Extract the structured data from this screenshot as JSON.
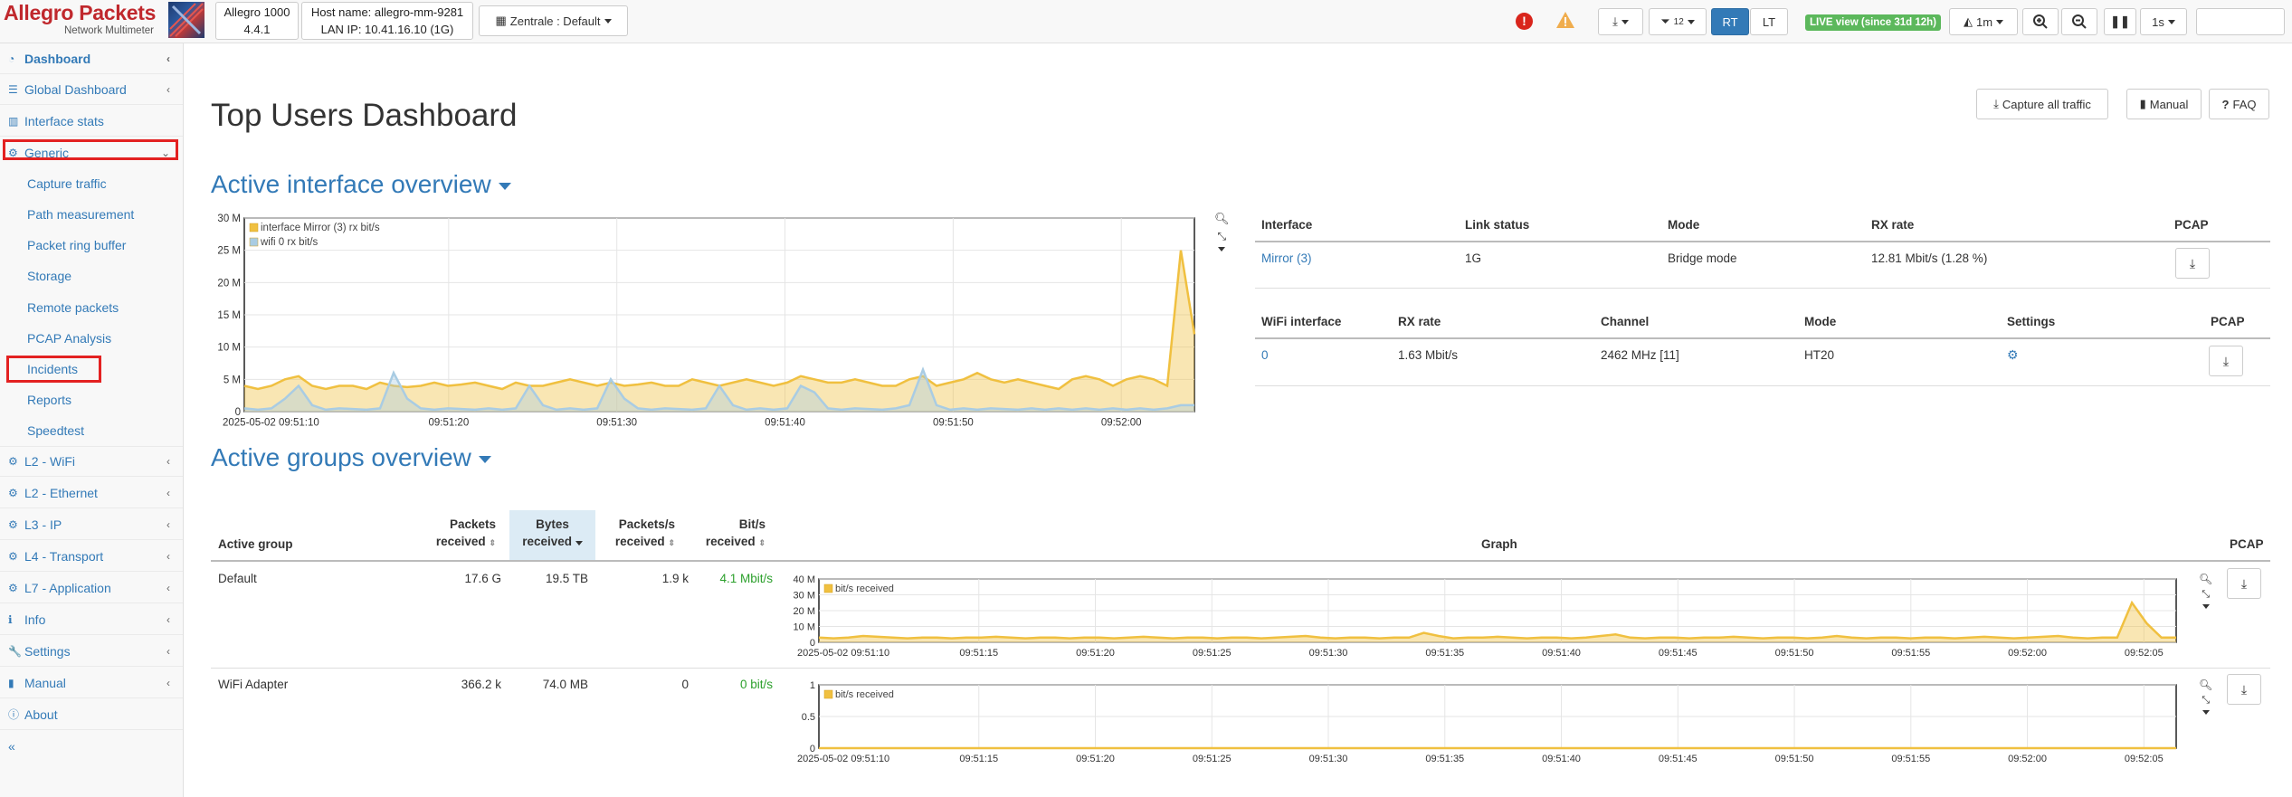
{
  "brand": {
    "title": "Allegro Packets",
    "subtitle": "Network Multimeter"
  },
  "device": {
    "model": "Allegro 1000",
    "version": "4.4.1",
    "hostname": "Host name: allegro-mm-9281",
    "lan_ip": "LAN IP: 10.41.16.10 (1G)"
  },
  "toolbar": {
    "dashboard_select": "Zentrale : Default",
    "filter_count": "12",
    "rt_label": "RT",
    "lt_label": "LT",
    "live_badge": "LIVE view (since 31d 12h)",
    "time_range": "1m",
    "interval": "1s",
    "colors": {
      "accent": "#337ab7",
      "live": "#5cb85c",
      "alert": "#d9251c",
      "warning": "#f0ad4e"
    }
  },
  "sidebar": {
    "items": [
      {
        "label": "Dashboard",
        "icon": "dashboard-icon"
      },
      {
        "label": "Global Dashboard",
        "icon": "list-icon"
      },
      {
        "label": "Interface stats",
        "icon": "bar-chart-icon"
      },
      {
        "label": "Generic",
        "icon": "gear-icon"
      },
      {
        "label": "Capture traffic"
      },
      {
        "label": "Path measurement"
      },
      {
        "label": "Packet ring buffer"
      },
      {
        "label": "Storage"
      },
      {
        "label": "Remote packets"
      },
      {
        "label": "PCAP Analysis"
      },
      {
        "label": "Incidents"
      },
      {
        "label": "Reports"
      },
      {
        "label": "Speedtest"
      },
      {
        "label": "L2 - WiFi",
        "icon": "gear-icon"
      },
      {
        "label": "L2 - Ethernet",
        "icon": "gear-icon"
      },
      {
        "label": "L3 - IP",
        "icon": "gear-icon"
      },
      {
        "label": "L4 - Transport",
        "icon": "gear-icon"
      },
      {
        "label": "L7 - Application",
        "icon": "gear-icon"
      },
      {
        "label": "Info",
        "icon": "info-icon"
      },
      {
        "label": "Settings",
        "icon": "wrench-icon"
      },
      {
        "label": "Manual",
        "icon": "book-icon"
      },
      {
        "label": "About",
        "icon": "info-circle-icon"
      }
    ],
    "collapse": "«"
  },
  "main": {
    "title": "Top Users Dashboard",
    "capture_all": "Capture all traffic",
    "manual": "Manual",
    "faq": "FAQ",
    "section1": "Active interface overview",
    "section2": "Active groups overview"
  },
  "interface_table": {
    "headers": [
      "Interface",
      "Link status",
      "Mode",
      "RX rate",
      "PCAP"
    ],
    "rows": [
      {
        "interface": "Mirror (3)",
        "link": "1G",
        "mode": "Bridge mode",
        "rx": "12.81 Mbit/s (1.28 %)"
      }
    ]
  },
  "wifi_table": {
    "headers": [
      "WiFi interface",
      "RX rate",
      "Channel",
      "Mode",
      "Settings",
      "PCAP"
    ],
    "rows": [
      {
        "interface": "0",
        "rx": "1.63 Mbit/s",
        "channel": "2462 MHz [11]",
        "mode": "HT20"
      }
    ]
  },
  "groups_table": {
    "headers": {
      "group": "Active group",
      "packets": [
        "Packets",
        "received"
      ],
      "bytes": [
        "Bytes",
        "received"
      ],
      "pps": [
        "Packets/s",
        "received"
      ],
      "bits": [
        "Bit/s",
        "received"
      ],
      "graph": "Graph",
      "pcap": "PCAP"
    },
    "rows": [
      {
        "group": "Default",
        "packets": "17.6 G",
        "bytes": "19.5 TB",
        "pps": "1.9 k",
        "bits": "4.1 Mbit/s"
      },
      {
        "group": "WiFi Adapter",
        "packets": "366.2 k",
        "bytes": "74.0 MB",
        "pps": "0",
        "bits": "0 bit/s"
      }
    ]
  },
  "chart_data": [
    {
      "type": "area",
      "legend": [
        "interface Mirror (3) rx bit/s",
        "wifi 0 rx bit/s"
      ],
      "y_ticks": [
        "0",
        "5 M",
        "10 M",
        "15 M",
        "20 M",
        "25 M",
        "30 M"
      ],
      "ylim": [
        0,
        30000000
      ],
      "x_ticks": [
        "2025-05-02 09:51:10",
        "09:51:20",
        "09:51:30",
        "09:51:40",
        "09:51:50",
        "09:52:00"
      ],
      "series": [
        {
          "name": "interface Mirror (3) rx bit/s",
          "color": "#f0c040",
          "values": [
            4,
            3.5,
            4,
            5,
            5.5,
            4,
            3.5,
            4,
            4,
            3.5,
            4.5,
            4,
            3.8,
            4,
            4.5,
            4,
            4.2,
            4.5,
            4,
            3.5,
            4.5,
            4,
            4,
            4.5,
            5,
            4.5,
            4,
            4.5,
            4,
            4.2,
            4.5,
            4,
            4,
            5,
            4.5,
            4,
            4.5,
            5,
            4.5,
            4,
            4.5,
            5.5,
            5,
            4.5,
            4.5,
            5,
            4.5,
            4,
            4,
            5,
            5.5,
            4,
            4.5,
            5,
            6,
            5,
            4.5,
            5,
            4.5,
            4,
            3.5,
            5,
            5.5,
            5,
            4,
            5,
            5.5,
            5,
            4,
            25,
            12
          ]
        },
        {
          "name": "wifi 0 rx bit/s",
          "color": "#a9cce3",
          "values": [
            0.5,
            0.3,
            0.5,
            2,
            4,
            1,
            0.3,
            0.5,
            0.4,
            0.3,
            0.5,
            6,
            2,
            0.5,
            0.3,
            0.5,
            0.4,
            0.3,
            0.5,
            0.3,
            0.5,
            4,
            1,
            0.3,
            0.5,
            0.3,
            0.5,
            5,
            2,
            0.5,
            0.3,
            0.5,
            0.4,
            0.3,
            0.5,
            4,
            1,
            0.3,
            0.5,
            0.3,
            0.5,
            4,
            3,
            0.5,
            0.3,
            0.5,
            0.4,
            0.3,
            0.5,
            1,
            6.5,
            1,
            0.3,
            0.5,
            0.3,
            0.5,
            0.4,
            0.3,
            0.5,
            0.3,
            0.5,
            0.3,
            0.5,
            0.3,
            0.5,
            0.3,
            0.5,
            0.3,
            0.5,
            1,
            1
          ]
        }
      ]
    },
    {
      "type": "area",
      "legend": [
        "bit/s received"
      ],
      "y_ticks": [
        "0",
        "10 M",
        "20 M",
        "30 M",
        "40 M"
      ],
      "ylim": [
        0,
        40000000
      ],
      "x_ticks": [
        "2025-05-02 09:51:10",
        "09:51:15",
        "09:51:20",
        "09:51:25",
        "09:51:30",
        "09:51:35",
        "09:51:40",
        "09:51:45",
        "09:51:50",
        "09:51:55",
        "09:52:00",
        "09:52:05"
      ],
      "series": [
        {
          "name": "bit/s received",
          "color": "#f0c040",
          "values": [
            3,
            2.5,
            3,
            4,
            3.5,
            3,
            2.5,
            3,
            3,
            2.5,
            3,
            3,
            3.5,
            3,
            2.5,
            3,
            3,
            2.5,
            3,
            3,
            2.5,
            3,
            3.5,
            3,
            2.5,
            3,
            3,
            2.5,
            3,
            3,
            2.5,
            3,
            3.5,
            4,
            3,
            2.5,
            3,
            3,
            2.5,
            3,
            3,
            6,
            4,
            2.5,
            3,
            3,
            3.5,
            3,
            2.5,
            3,
            3,
            2.5,
            3,
            4,
            5,
            3,
            2.5,
            3,
            3,
            2.5,
            3,
            3,
            3.5,
            3,
            2.5,
            3,
            3,
            2.5,
            3,
            4,
            3,
            2.5,
            3,
            3,
            2.5,
            3,
            3,
            2.5,
            3,
            3.5,
            3,
            2.5,
            3,
            3.5,
            4,
            3,
            2.5,
            3,
            3,
            25,
            12,
            3,
            3
          ]
        }
      ]
    },
    {
      "type": "area",
      "legend": [
        "bit/s received"
      ],
      "y_ticks": [
        "0",
        "0.5",
        "1"
      ],
      "ylim": [
        0,
        1
      ],
      "x_ticks": [
        "2025-05-02 09:51:10",
        "09:51:15",
        "09:51:20",
        "09:51:25",
        "09:51:30",
        "09:51:35",
        "09:51:40",
        "09:51:45",
        "09:51:50",
        "09:51:55",
        "09:52:00",
        "09:52:05"
      ],
      "series": [
        {
          "name": "bit/s received",
          "color": "#f0c040",
          "values": [
            0,
            0,
            0,
            0,
            0,
            0,
            0,
            0,
            0,
            0,
            0,
            0
          ]
        }
      ]
    }
  ]
}
